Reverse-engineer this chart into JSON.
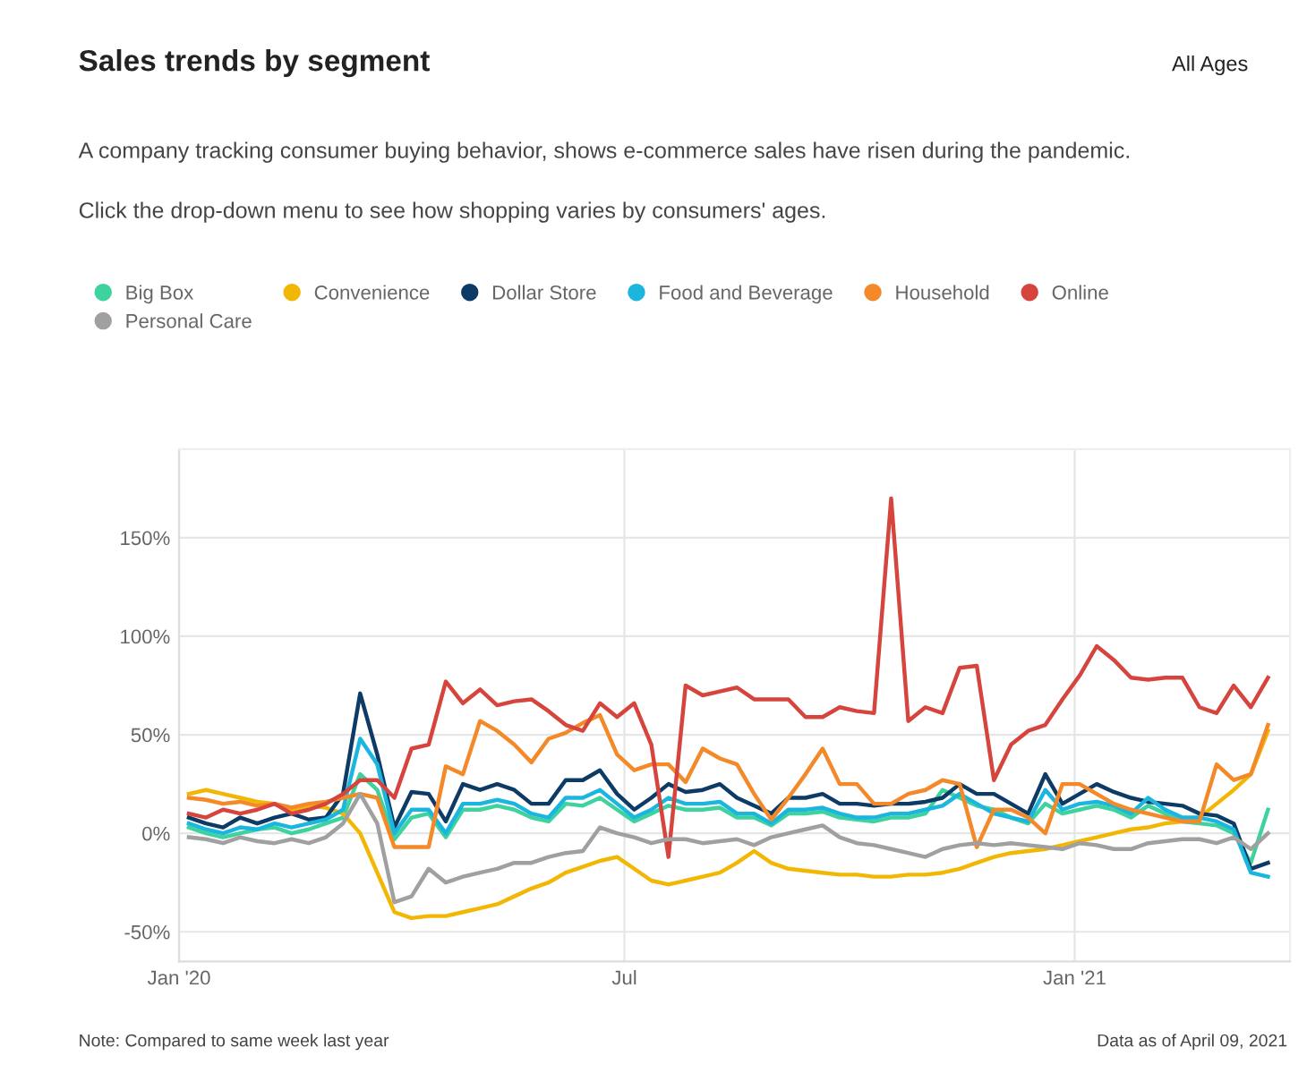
{
  "chart_data": {
    "type": "line",
    "title": "Sales trends by segment",
    "subtitle": "A company tracking consumer buying behavior, shows e-commerce sales have risen during the pandemic.",
    "annotations": [
      "Click the drop-down menu to see how shopping varies by consumers' ages.",
      "All Ages",
      "Note: Compared to same week last year",
      "Data as of April 09, 2021"
    ],
    "x": [
      "2020-01-05",
      "2020-01-12",
      "2020-01-19",
      "2020-01-26",
      "2020-02-02",
      "2020-02-09",
      "2020-02-16",
      "2020-02-23",
      "2020-03-01",
      "2020-03-08",
      "2020-03-15",
      "2020-03-22",
      "2020-03-29",
      "2020-04-05",
      "2020-04-12",
      "2020-04-19",
      "2020-04-26",
      "2020-05-03",
      "2020-05-10",
      "2020-05-17",
      "2020-05-24",
      "2020-05-31",
      "2020-06-07",
      "2020-06-14",
      "2020-06-21",
      "2020-06-28",
      "2020-07-05",
      "2020-07-12",
      "2020-07-19",
      "2020-07-26",
      "2020-08-02",
      "2020-08-09",
      "2020-08-16",
      "2020-08-23",
      "2020-08-30",
      "2020-09-06",
      "2020-09-13",
      "2020-09-20",
      "2020-09-27",
      "2020-10-04",
      "2020-10-11",
      "2020-10-18",
      "2020-10-25",
      "2020-11-01",
      "2020-11-08",
      "2020-11-15",
      "2020-11-22",
      "2020-11-29",
      "2020-12-06",
      "2020-12-13",
      "2020-12-20",
      "2020-12-27",
      "2021-01-03",
      "2021-01-10",
      "2021-01-17",
      "2021-01-24",
      "2021-01-31",
      "2021-02-07",
      "2021-02-14",
      "2021-02-21",
      "2021-02-28",
      "2021-03-07",
      "2021-03-14",
      "2021-03-21"
    ],
    "series": [
      {
        "name": "Big Box",
        "color": "#3ed39e",
        "values": [
          3,
          0,
          -2,
          0,
          2,
          3,
          0,
          2,
          5,
          8,
          30,
          22,
          -3,
          8,
          10,
          -2,
          12,
          12,
          14,
          12,
          8,
          6,
          15,
          14,
          18,
          12,
          6,
          10,
          14,
          12,
          12,
          13,
          8,
          8,
          4,
          10,
          10,
          11,
          8,
          7,
          6,
          8,
          8,
          10,
          22,
          18,
          14,
          12,
          8,
          5,
          15,
          10,
          12,
          14,
          12,
          8,
          14,
          10,
          6,
          5,
          4,
          0,
          -15,
          12
        ]
      },
      {
        "name": "Convenience",
        "color": "#f2b705",
        "values": [
          20,
          22,
          20,
          18,
          16,
          15,
          12,
          14,
          13,
          10,
          0,
          -20,
          -40,
          -43,
          -42,
          -42,
          -40,
          -38,
          -36,
          -32,
          -28,
          -25,
          -20,
          -17,
          -14,
          -12,
          -18,
          -24,
          -26,
          -24,
          -22,
          -20,
          -15,
          -9,
          -15,
          -18,
          -19,
          -20,
          -21,
          -21,
          -22,
          -22,
          -21,
          -21,
          -20,
          -18,
          -15,
          -12,
          -10,
          -9,
          -8,
          -6,
          -4,
          -2,
          0,
          2,
          3,
          5,
          6,
          8,
          15,
          22,
          30,
          52
        ]
      },
      {
        "name": "Dollar Store",
        "color": "#0d3b66",
        "values": [
          8,
          5,
          3,
          8,
          5,
          8,
          10,
          7,
          8,
          20,
          71,
          40,
          3,
          21,
          20,
          6,
          25,
          22,
          25,
          22,
          15,
          15,
          27,
          27,
          32,
          20,
          12,
          18,
          25,
          21,
          22,
          25,
          18,
          14,
          10,
          18,
          18,
          20,
          15,
          15,
          14,
          15,
          15,
          16,
          18,
          25,
          20,
          20,
          15,
          10,
          30,
          15,
          20,
          25,
          21,
          18,
          16,
          15,
          14,
          10,
          9,
          5,
          -18,
          -15
        ]
      },
      {
        "name": "Food and Beverage",
        "color": "#1bb6e0",
        "values": [
          5,
          2,
          0,
          3,
          2,
          5,
          3,
          5,
          7,
          12,
          48,
          35,
          0,
          12,
          12,
          0,
          15,
          15,
          17,
          15,
          10,
          8,
          18,
          18,
          22,
          15,
          8,
          12,
          18,
          15,
          15,
          16,
          10,
          10,
          5,
          12,
          12,
          13,
          10,
          8,
          8,
          10,
          10,
          12,
          14,
          20,
          15,
          10,
          8,
          6,
          22,
          12,
          15,
          16,
          14,
          10,
          18,
          12,
          8,
          8,
          6,
          2,
          -20,
          -22
        ]
      },
      {
        "name": "Household",
        "color": "#f4892a",
        "values": [
          18,
          17,
          15,
          16,
          14,
          15,
          13,
          15,
          16,
          18,
          20,
          18,
          -7,
          -7,
          -7,
          34,
          30,
          57,
          52,
          45,
          36,
          48,
          51,
          56,
          60,
          40,
          32,
          35,
          35,
          26,
          43,
          38,
          35,
          20,
          7,
          18,
          30,
          43,
          25,
          25,
          15,
          15,
          20,
          22,
          27,
          25,
          -7,
          12,
          12,
          8,
          0,
          25,
          25,
          20,
          15,
          12,
          10,
          8,
          6,
          6,
          35,
          27,
          30,
          55
        ]
      },
      {
        "name": "Online",
        "color": "#d6453d",
        "values": [
          10,
          8,
          12,
          10,
          12,
          15,
          10,
          12,
          15,
          20,
          27,
          27,
          18,
          43,
          45,
          77,
          66,
          73,
          65,
          67,
          68,
          62,
          55,
          52,
          66,
          59,
          66,
          45,
          -12,
          75,
          70,
          72,
          74,
          68,
          68,
          68,
          59,
          59,
          64,
          62,
          61,
          170,
          57,
          64,
          61,
          84,
          85,
          27,
          45,
          52,
          55,
          68,
          80,
          95,
          88,
          79,
          78,
          79,
          79,
          64,
          61,
          75,
          64,
          79
        ]
      },
      {
        "name": "Personal Care",
        "color": "#a0a0a0",
        "values": [
          -2,
          -3,
          -5,
          -2,
          -4,
          -5,
          -3,
          -5,
          -2,
          5,
          20,
          5,
          -35,
          -32,
          -18,
          -25,
          -22,
          -20,
          -18,
          -15,
          -15,
          -12,
          -10,
          -9,
          3,
          0,
          -2,
          -5,
          -3,
          -3,
          -5,
          -4,
          -3,
          -6,
          -2,
          0,
          2,
          4,
          -2,
          -5,
          -6,
          -8,
          -10,
          -12,
          -8,
          -6,
          -5,
          -6,
          -5,
          -6,
          -7,
          -8,
          -5,
          -6,
          -8,
          -8,
          -5,
          -4,
          -3,
          -3,
          -5,
          -2,
          -8,
          0
        ]
      }
    ],
    "xlim": [
      "2020-01-01",
      "2021-03-30"
    ],
    "xticks": [
      {
        "value": "2020-01-01",
        "label": "Jan '20"
      },
      {
        "value": "2020-07-01",
        "label": "Jul"
      },
      {
        "value": "2021-01-01",
        "label": "Jan '21"
      }
    ],
    "ylim": [
      -65,
      195
    ],
    "yticks": [
      {
        "value": -50,
        "label": "-50%"
      },
      {
        "value": 0,
        "label": "0%"
      },
      {
        "value": 50,
        "label": "50%"
      },
      {
        "value": 100,
        "label": "100%"
      },
      {
        "value": 150,
        "label": "150%"
      }
    ],
    "grid": true,
    "legend": "top",
    "line_style": "solid"
  }
}
